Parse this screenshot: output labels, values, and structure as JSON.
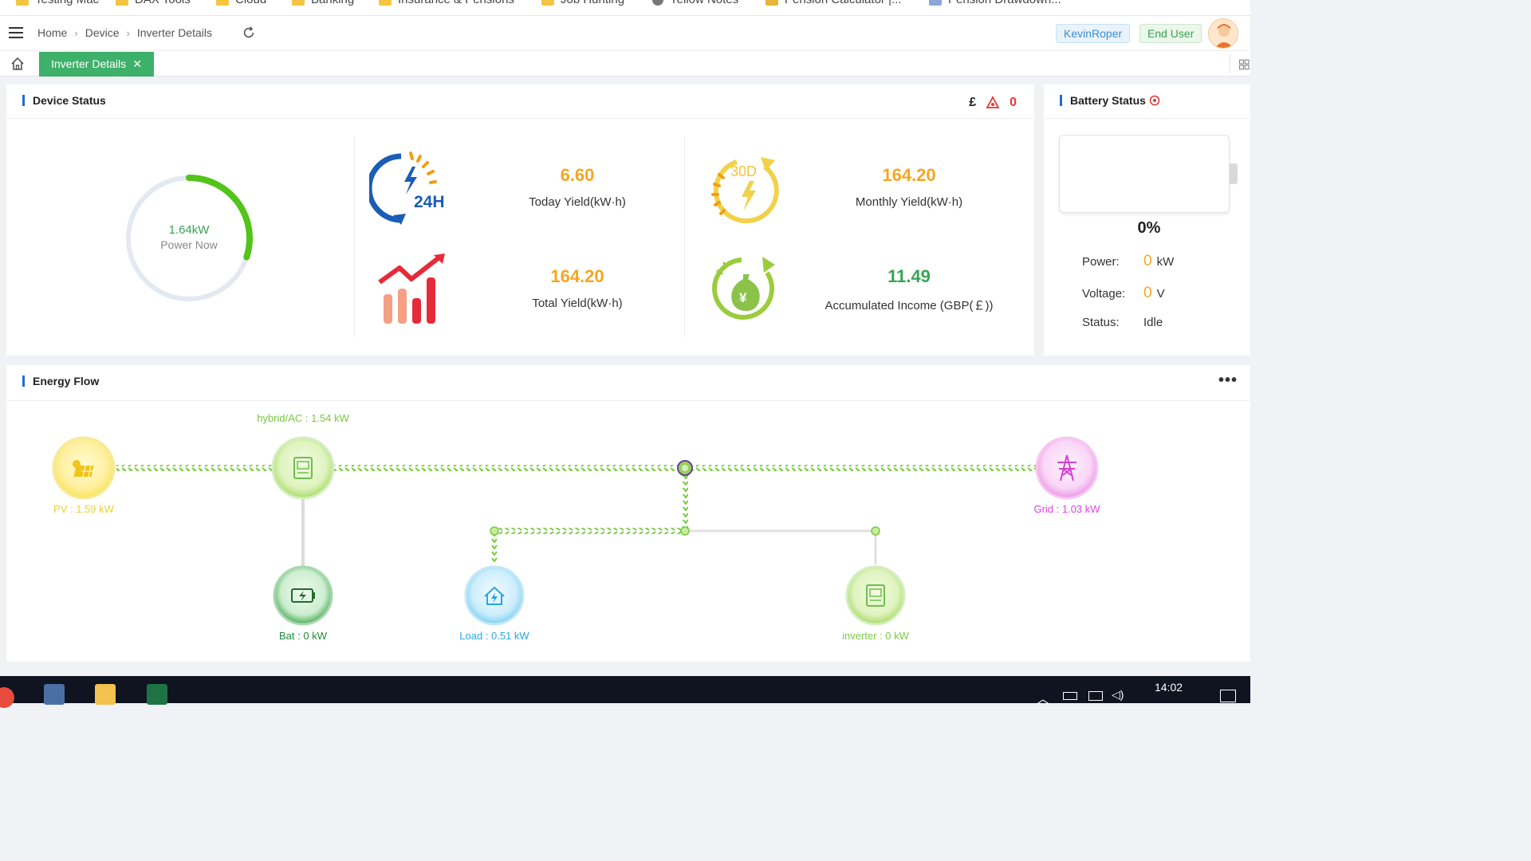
{
  "bookmarks": [
    "Testing Mac",
    "DAX Tools",
    "Cloud",
    "Banking",
    "Insurance & Pensions",
    "Job Hunting",
    "Yellow Notes",
    "Pension Calculator |...",
    "Pension Drawdown..."
  ],
  "header": {
    "breadcrumbs": [
      "Home",
      "Device",
      "Inverter Details"
    ],
    "user_name": "KevinRoper",
    "user_role": "End User"
  },
  "tabs": {
    "active_label": "Inverter Details",
    "close_symbol": "✕"
  },
  "device_status": {
    "title": "Device Status",
    "currency_symbol": "£",
    "alarm_count": "0",
    "power_now_value": "1.64kW",
    "power_now_label": "Power Now",
    "power_now_fraction": 0.3,
    "today_yield_value": "6.60",
    "today_yield_label": "Today Yield(kW·h)",
    "monthly_yield_value": "164.20",
    "monthly_yield_label": "Monthly Yield(kW·h)",
    "total_yield_value": "164.20",
    "total_yield_label": "Total Yield(kW·h)",
    "income_value": "11.49",
    "income_label": "Accumulated Income (GBP(￡))",
    "icon_24h_text": "24H",
    "icon_30d_text": "30D",
    "icon_money_text": "¥"
  },
  "battery_status": {
    "title": "Battery Status",
    "percent": "0%",
    "power_label": "Power:",
    "power_value": "0",
    "power_unit": "kW",
    "voltage_label": "Voltage:",
    "voltage_value": "0",
    "voltage_unit": "V",
    "status_label": "Status:",
    "status_value": "Idle"
  },
  "energy_flow": {
    "title": "Energy Flow",
    "more_symbol": "•••",
    "hybrid_label": "hybrid/AC : 1.54 kW",
    "pv_label": "PV : 1.59 kW",
    "grid_label": "Grid : 1.03 kW",
    "bat_label": "Bat : 0 kW",
    "load_label": "Load : 0.51 kW",
    "inverter_label": "inverter : 0 kW"
  },
  "taskbar": {
    "time": "14:02"
  },
  "colors": {
    "accent_green": "#3db06a",
    "orange": "#f5a623",
    "income_green": "#3aa356",
    "pv_yellow": "#f5e028",
    "grid_magenta": "#e040e0",
    "load_blue": "#2aa7e0",
    "bat_green": "#1f8a3a",
    "flow_green": "#7ac943"
  }
}
